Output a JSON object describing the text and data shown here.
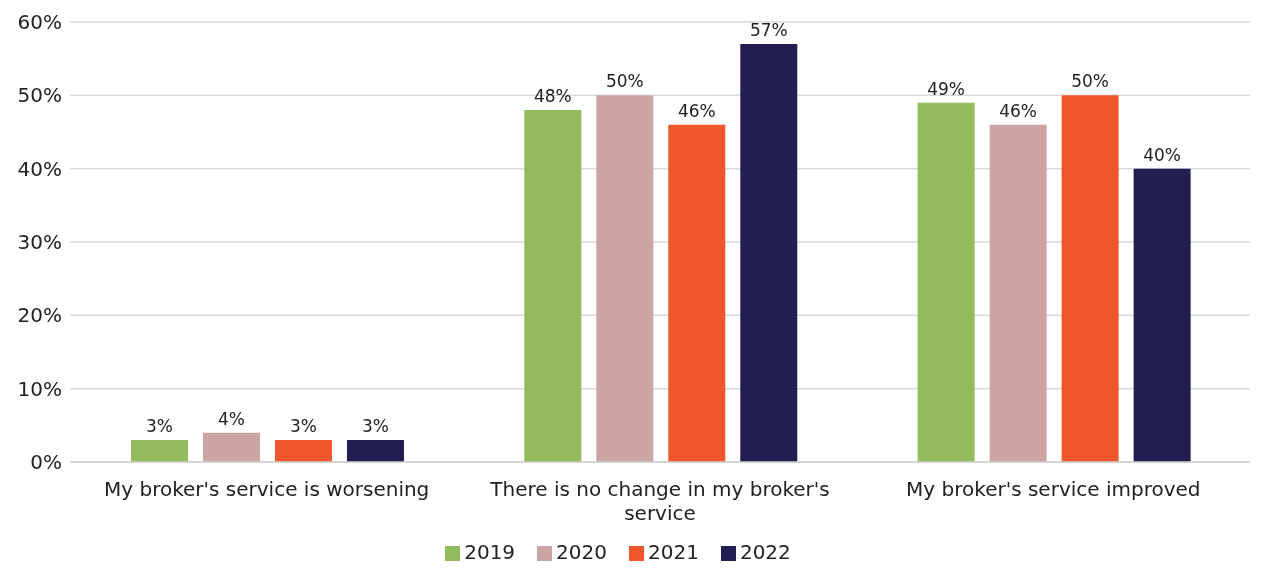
{
  "chart_data": {
    "type": "bar",
    "categories": [
      "My broker's service is worsening",
      "There is no change in my broker's service",
      "My broker's service improved"
    ],
    "series": [
      {
        "name": "2019",
        "color": "#92bc5c",
        "values": [
          3,
          48,
          49
        ],
        "value_labels": [
          "3%",
          "48%",
          "49%"
        ]
      },
      {
        "name": "2020",
        "color": "#cca4a4",
        "values": [
          4,
          50,
          46
        ],
        "value_labels": [
          "4%",
          "50%",
          "46%"
        ]
      },
      {
        "name": "2021",
        "color": "#f0562c",
        "values": [
          3,
          46,
          50
        ],
        "value_labels": [
          "3%",
          "46%",
          "50%"
        ]
      },
      {
        "name": "2022",
        "color": "#221e52",
        "values": [
          3,
          57,
          40
        ],
        "value_labels": [
          "3%",
          "57%",
          "40%"
        ]
      }
    ],
    "ylim": [
      0,
      60
    ],
    "yticks": [
      {
        "value": 0,
        "label": "0%"
      },
      {
        "value": 10,
        "label": "10%"
      },
      {
        "value": 20,
        "label": "20%"
      },
      {
        "value": 30,
        "label": "30%"
      },
      {
        "value": 40,
        "label": "40%"
      },
      {
        "value": 50,
        "label": "50%"
      },
      {
        "value": 60,
        "label": "60%"
      }
    ],
    "grid": "y",
    "legend": "bottom"
  }
}
